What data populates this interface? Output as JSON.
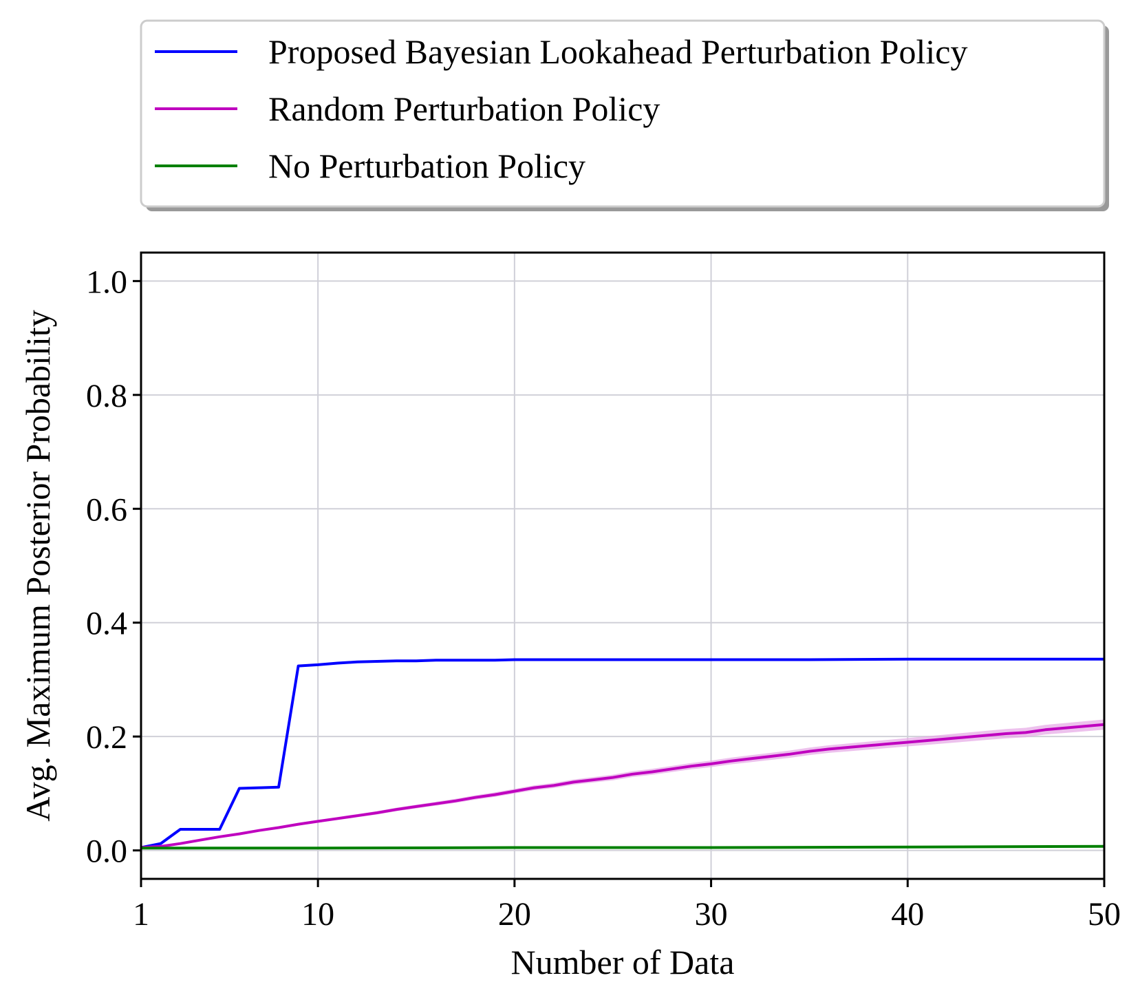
{
  "chart_data": {
    "type": "line",
    "title": "",
    "xlabel": "Number of Data",
    "ylabel": "Avg. Maximum Posterior Probability",
    "xlim": [
      1,
      50
    ],
    "ylim": [
      -0.05,
      1.05
    ],
    "xticks": [
      1,
      10,
      20,
      30,
      40,
      50
    ],
    "xtick_labels": [
      "1",
      "10",
      "20",
      "30",
      "40",
      "50"
    ],
    "yticks": [
      0.0,
      0.2,
      0.4,
      0.6,
      0.8,
      1.0
    ],
    "ytick_labels": [
      "0.0",
      "0.2",
      "0.4",
      "0.6",
      "0.8",
      "1.0"
    ],
    "grid": true,
    "legend_position": "above-plot",
    "series": [
      {
        "name": "Proposed Bayesian Lookahead Perturbation Policy",
        "color": "#0000ff",
        "x": [
          1,
          2,
          3,
          4,
          5,
          6,
          7,
          8,
          9,
          10,
          11,
          12,
          13,
          14,
          15,
          16,
          17,
          18,
          19,
          20,
          25,
          30,
          35,
          40,
          45,
          50
        ],
        "y": [
          0.005,
          0.012,
          0.037,
          0.037,
          0.037,
          0.109,
          0.11,
          0.111,
          0.324,
          0.326,
          0.329,
          0.331,
          0.332,
          0.333,
          0.333,
          0.334,
          0.334,
          0.334,
          0.334,
          0.335,
          0.335,
          0.335,
          0.335,
          0.336,
          0.336,
          0.336
        ]
      },
      {
        "name": "Random Perturbation Policy",
        "color": "#bf00bf",
        "band_color": "#e6a6e6",
        "x": [
          1,
          2,
          3,
          4,
          5,
          6,
          7,
          8,
          9,
          10,
          11,
          12,
          13,
          14,
          15,
          16,
          17,
          18,
          19,
          20,
          21,
          22,
          23,
          24,
          25,
          26,
          27,
          28,
          29,
          30,
          31,
          32,
          33,
          34,
          35,
          36,
          37,
          38,
          39,
          40,
          41,
          42,
          43,
          44,
          45,
          46,
          47,
          48,
          49,
          50
        ],
        "y": [
          0.005,
          0.007,
          0.012,
          0.018,
          0.024,
          0.029,
          0.035,
          0.04,
          0.046,
          0.051,
          0.056,
          0.061,
          0.066,
          0.072,
          0.077,
          0.082,
          0.087,
          0.093,
          0.098,
          0.104,
          0.11,
          0.114,
          0.12,
          0.124,
          0.128,
          0.134,
          0.138,
          0.143,
          0.148,
          0.152,
          0.157,
          0.161,
          0.165,
          0.169,
          0.174,
          0.178,
          0.181,
          0.184,
          0.187,
          0.19,
          0.193,
          0.196,
          0.199,
          0.202,
          0.205,
          0.207,
          0.212,
          0.215,
          0.218,
          0.221
        ]
      },
      {
        "name": "No Perturbation Policy",
        "color": "#008000",
        "x": [
          1,
          10,
          20,
          30,
          40,
          50
        ],
        "y": [
          0.004,
          0.004,
          0.005,
          0.005,
          0.006,
          0.007
        ]
      }
    ]
  }
}
